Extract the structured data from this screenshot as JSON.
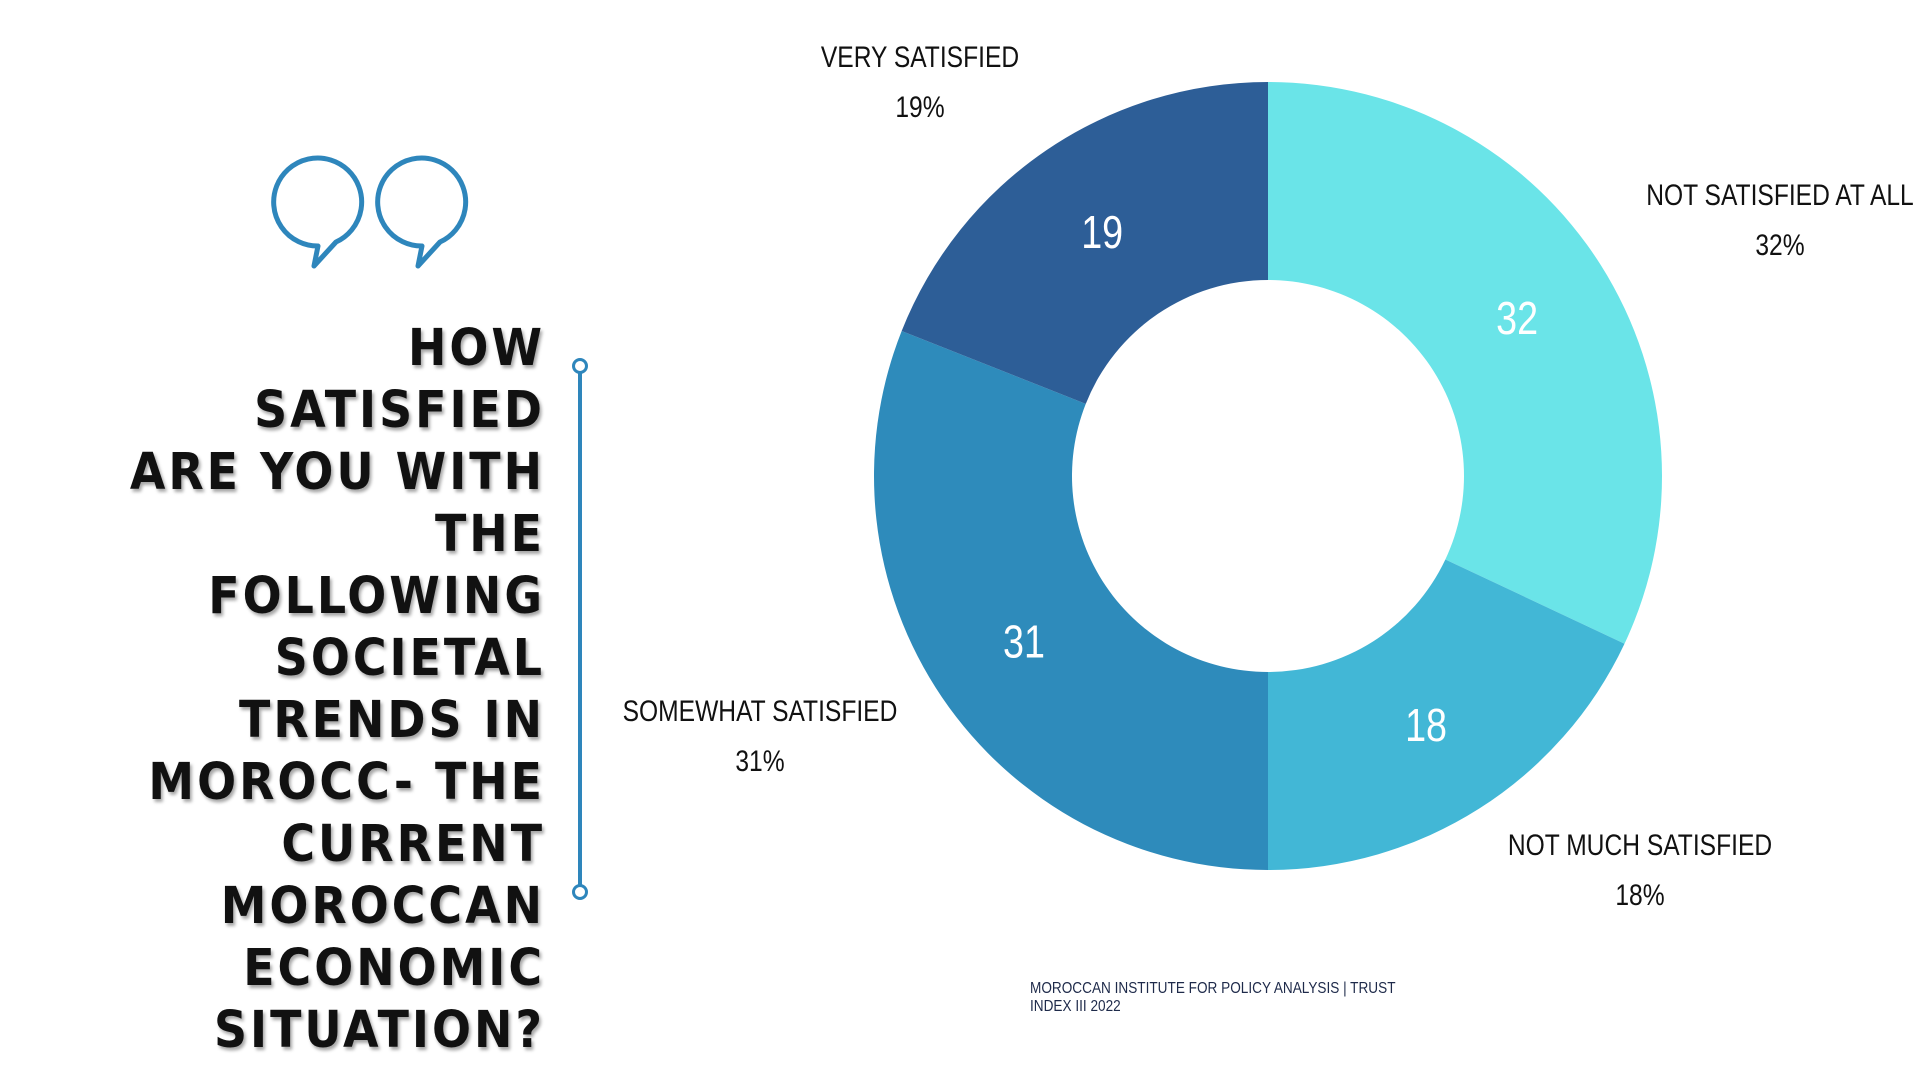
{
  "question": "HOW SATISFIED ARE YOU WITH THE FOLLOWING SOCIETAL TRENDS IN MOROCC- THE CURRENT MOROCCAN ECONOMIC SITUATION?",
  "footer": "MOROCCAN  INSTITUTE FOR POLICY ANALYSIS | TRUST INDEX III 2022",
  "icons": {
    "quote": "quote-icon",
    "timeline": "timeline-line"
  },
  "colors": {
    "accent": "#2e86bc",
    "text": "#111111",
    "footer": "#1e2a4a"
  },
  "chart_data": {
    "type": "pie",
    "donut": true,
    "categories": [
      "NOT SATISFIED AT ALL",
      "NOT MUCH SATISFIED",
      "SOMEWHAT SATISFIED",
      "VERY SATISFIED"
    ],
    "values": [
      32,
      18,
      31,
      19
    ],
    "data_labels": [
      "32",
      "18",
      "31",
      "19"
    ],
    "percent_labels": [
      "32%",
      "18%",
      "31%",
      "19%"
    ],
    "colors": [
      "#6ae4e8",
      "#42b7d6",
      "#2e8bbb",
      "#2d5e97"
    ],
    "start": "top",
    "direction": "clockwise"
  }
}
